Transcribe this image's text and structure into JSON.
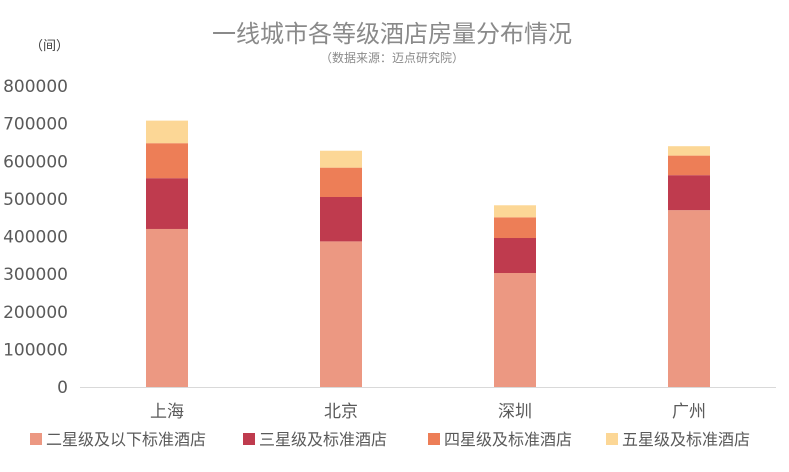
{
  "chart_data": {
    "type": "bar",
    "stacked": true,
    "title": "一线城市各等级酒店房量分布情况",
    "subtitle": "（数据来源：迈点研究院）",
    "unit_label": "（间）",
    "categories": [
      "上海",
      "北京",
      "深圳",
      "广州"
    ],
    "ylim": [
      0,
      800000
    ],
    "yticks": [
      0,
      100000,
      200000,
      300000,
      400000,
      500000,
      600000,
      700000,
      800000
    ],
    "ytick_labels": [
      "0",
      "100000",
      "200000",
      "300000",
      "400000",
      "500000",
      "600000",
      "700000",
      "800000"
    ],
    "grid": false,
    "legend_position": "bottom",
    "series": [
      {
        "name": "二星级及以下标准酒店",
        "color": "#ec9882",
        "values": [
          420000,
          387000,
          303000,
          470000
        ]
      },
      {
        "name": "三星级及标准酒店",
        "color": "#bf3b4e",
        "values": [
          135000,
          118000,
          93000,
          93000
        ]
      },
      {
        "name": "四星级及标准酒店",
        "color": "#ed7e57",
        "values": [
          93000,
          78000,
          55000,
          52000
        ]
      },
      {
        "name": "五星级及标准酒店",
        "color": "#fcd796",
        "values": [
          60000,
          45000,
          32000,
          25000
        ]
      }
    ]
  }
}
